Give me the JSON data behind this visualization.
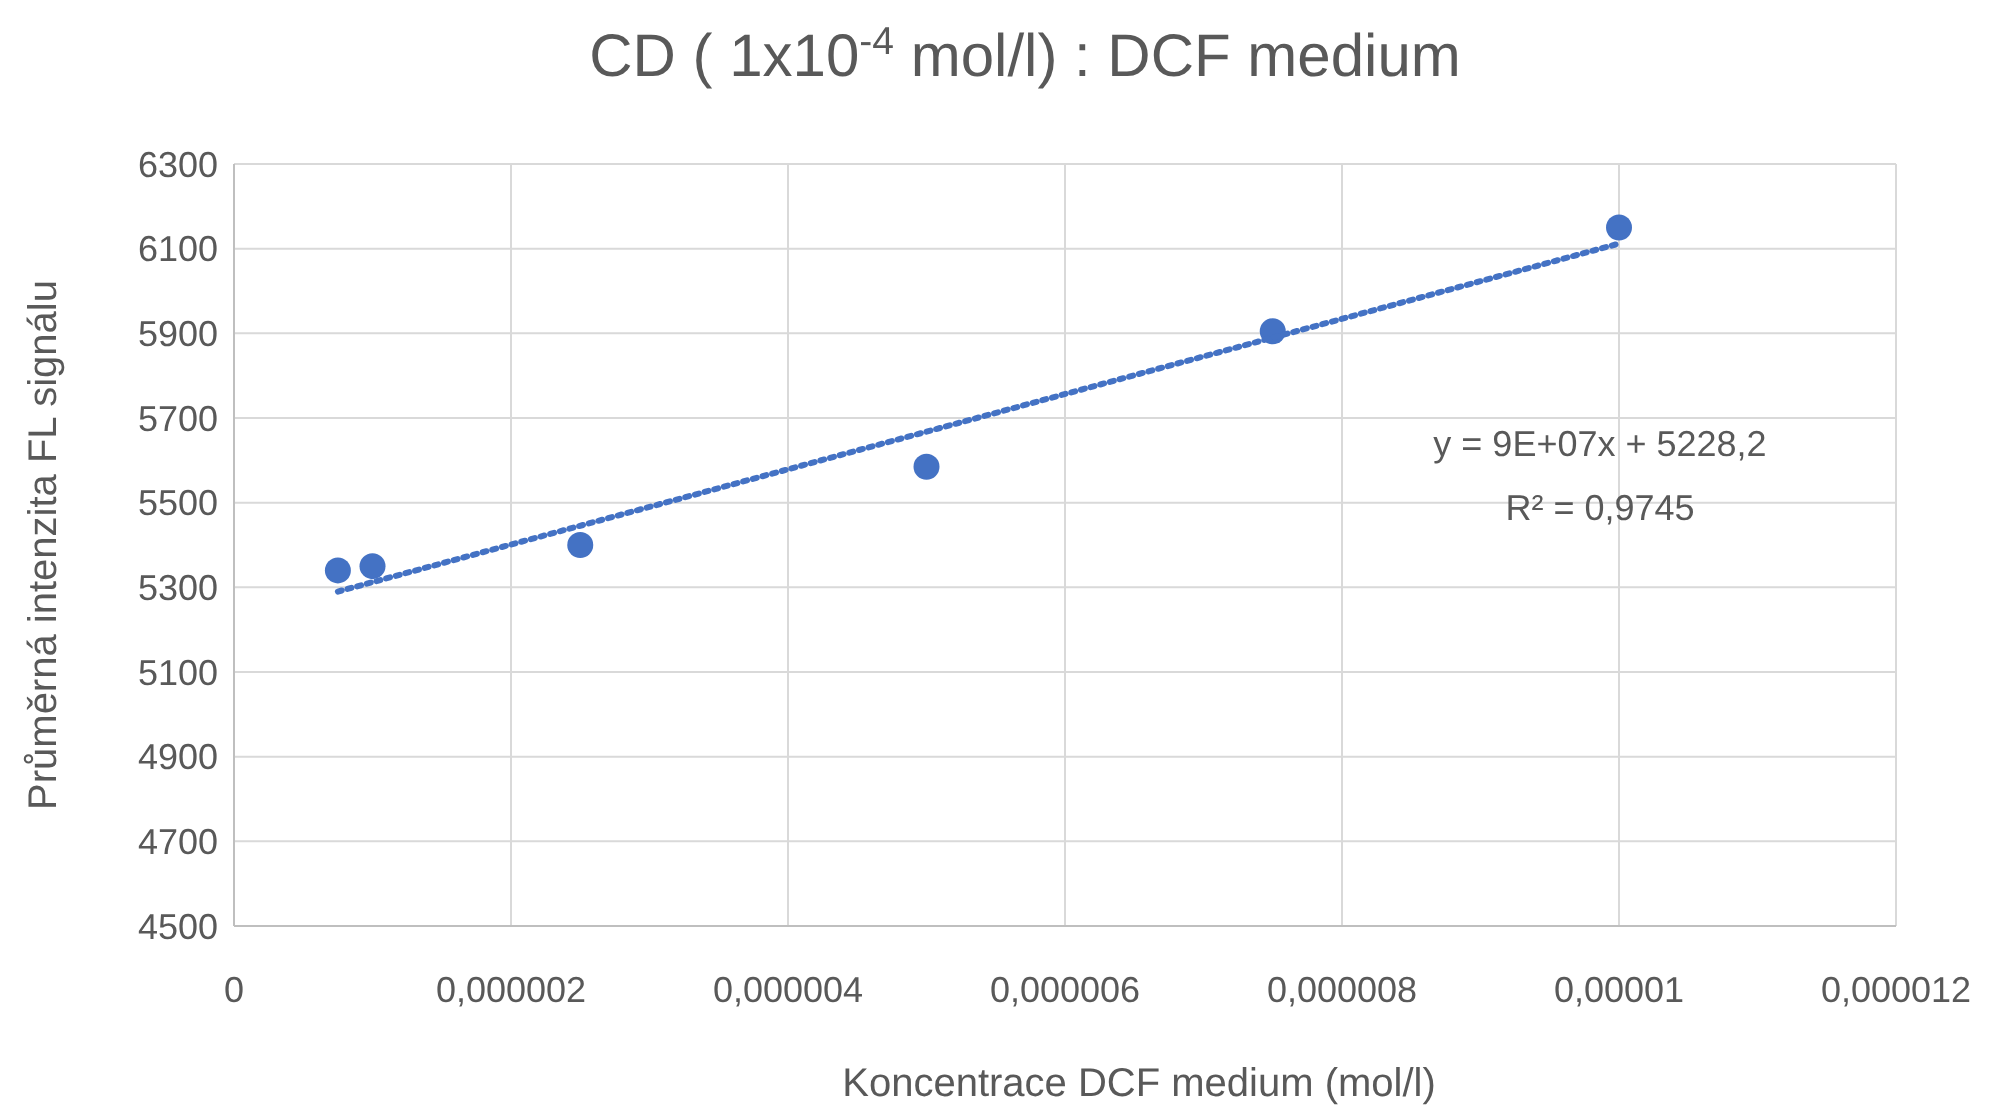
{
  "chart_data": {
    "type": "scatter",
    "title": "CD ( 1x10$^{-4}$ mol/l) : DCF medium",
    "xlabel": "Koncentrace DCF medium (mol/l)",
    "ylabel": "Průměrná intenzita FL signálu",
    "xlim": [
      0,
      1.2e-05
    ],
    "xticks": [
      0,
      {
        "value": 2e-06,
        "label": "0,000002"
      },
      {
        "value": 4e-06,
        "label": "0,000004"
      },
      {
        "value": 6e-06,
        "label": "0,000006"
      },
      {
        "value": 8e-06,
        "label": "0,000008"
      },
      {
        "value": 1e-05,
        "label": "0,00001"
      },
      {
        "value": 1.2e-05,
        "label": "0,000012"
      }
    ],
    "ylim": [
      4500,
      6300
    ],
    "yticks": [
      4500,
      4700,
      4900,
      5100,
      5300,
      5500,
      5700,
      5900,
      6100,
      6300
    ],
    "grid": true,
    "series": [
      {
        "color": "#4472c4",
        "marker": "circle",
        "x": [
          7.5e-07,
          1e-06,
          2.5e-06,
          5e-06,
          7.5e-06,
          1e-05
        ],
        "values": [
          5340,
          5350,
          5400,
          5585,
          5905,
          6150
        ]
      },
      {
        "type": "line",
        "color": "#4472c4",
        "line_style": "dotted",
        "marker": "none",
        "x": [
          7.5e-07,
          1e-05
        ],
        "values": [
          5290,
          6112
        ]
      }
    ],
    "annotations": [
      "y = 9E+07x + 5228,2",
      "R² = 0,9745"
    ]
  }
}
